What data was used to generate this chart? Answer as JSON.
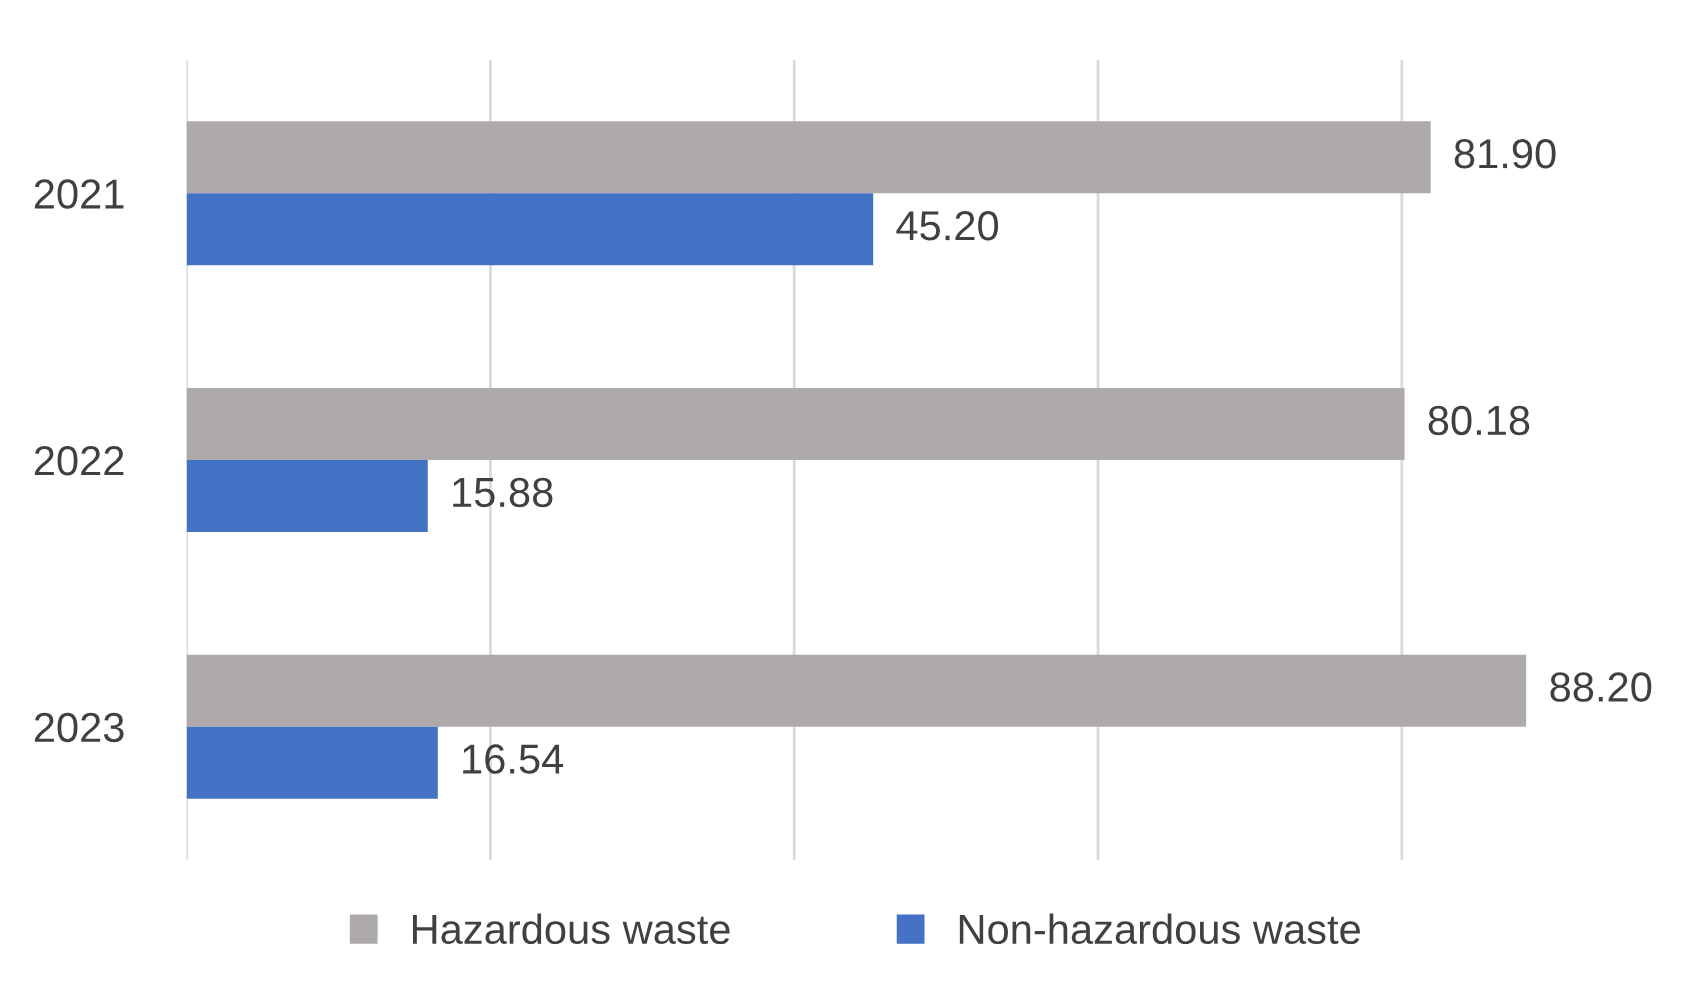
{
  "chart_data": {
    "type": "bar",
    "orientation": "horizontal",
    "categories": [
      "2021",
      "2022",
      "2023"
    ],
    "series": [
      {
        "name": "Hazardous waste",
        "color": "#aeaaaa",
        "values": [
          81.9,
          80.18,
          88.2
        ],
        "value_labels": [
          "81.90",
          "80.18",
          "88.20"
        ]
      },
      {
        "name": "Non-hazardous waste",
        "color": "#4472c4",
        "values": [
          45.2,
          15.88,
          16.54
        ],
        "value_labels": [
          "45.20",
          "15.88",
          "16.54"
        ]
      }
    ],
    "xticks": [
      {
        "value": 0,
        "label": null
      },
      {
        "value": 20,
        "label": null
      },
      {
        "value": 40,
        "label": null
      },
      {
        "value": 60,
        "label": null
      },
      {
        "value": 80,
        "label": null
      }
    ],
    "grid": "x",
    "legend": "bottom",
    "tick_labels": "y"
  }
}
